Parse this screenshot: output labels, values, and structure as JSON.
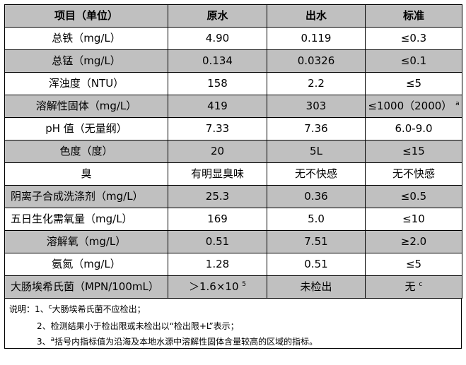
{
  "table": {
    "headers": [
      "项目（单位）",
      "原水",
      "出水",
      "标准"
    ],
    "rows": [
      {
        "item": "总铁（mg/L）",
        "raw": "4.90",
        "out": "0.119",
        "std": "≤0.3",
        "shade": false
      },
      {
        "item": "总锰（mg/L）",
        "raw": "0.134",
        "out": "0.0326",
        "std": "≤0.1",
        "shade": true
      },
      {
        "item": "浑浊度（NTU）",
        "raw": "158",
        "out": "2.2",
        "std": "≤5",
        "shade": false
      },
      {
        "item": "溶解性固体（mg/L）",
        "raw": "419",
        "out": "303",
        "std": "≤1000（2000）",
        "std_sup": "a",
        "shade": true
      },
      {
        "item": "pH 值（无量纲）",
        "raw": "7.33",
        "out": "7.36",
        "std": "6.0-9.0",
        "shade": false
      },
      {
        "item": "色度（度）",
        "raw": "20",
        "out": "5L",
        "std": "≤15",
        "shade": true
      },
      {
        "item": "臭",
        "raw": "有明显臭味",
        "out": "无不快感",
        "std": "无不快感",
        "shade": false
      },
      {
        "item": "阴离子合成洗涤剂（mg/L）",
        "raw": "25.3",
        "out": "0.36",
        "std": "≤0.5",
        "shade": true,
        "left": true
      },
      {
        "item": "五日生化需氧量（mg/L）",
        "raw": "169",
        "out": "5.0",
        "std": "≤10",
        "shade": false,
        "left": true
      },
      {
        "item": "溶解氧（mg/L）",
        "raw": "0.51",
        "out": "7.51",
        "std": "≥2.0",
        "shade": true
      },
      {
        "item": "氨氮（mg/L）",
        "raw": "1.28",
        "out": "0.51",
        "std": "≤5",
        "shade": false
      },
      {
        "item": "大肠埃希氏菌（MPN/100mL）",
        "raw": "＞1.6×10",
        "raw_sup": "5",
        "out": "未检出",
        "std": "无",
        "std_sup": "c",
        "shade": true,
        "left": true
      }
    ]
  },
  "notes": {
    "n1_prefix": "说明：1、",
    "n1_sup": "c",
    "n1_text": "大肠埃希氏菌不应检出；",
    "n2": "2、检测结果小于检出限或未检出以“检出限+L”表示；",
    "n3_prefix": "3、",
    "n3_sup": "a",
    "n3_text": "括号内指标值为沿海及本地水源中溶解性固体含量较高的区域的指标。"
  }
}
